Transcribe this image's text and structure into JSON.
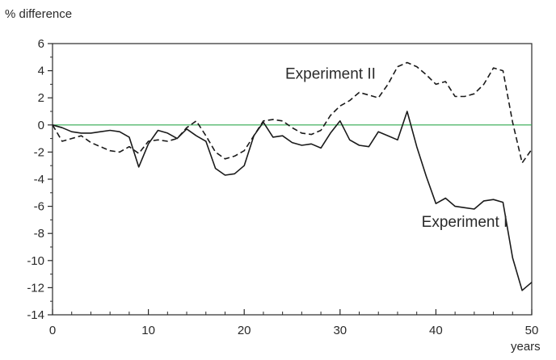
{
  "chart_data": {
    "type": "line",
    "title": "",
    "ylabel": "% difference",
    "xlabel": "years",
    "xlim": [
      0,
      50
    ],
    "ylim": [
      -14,
      6
    ],
    "x_ticks": [
      0,
      10,
      20,
      30,
      40,
      50
    ],
    "y_ticks": [
      6,
      4,
      2,
      0,
      -2,
      -4,
      -6,
      -8,
      -10,
      -12,
      -14
    ],
    "grid": false,
    "zero_line_color": "#2fa84f",
    "line_color": "#1a1a1a",
    "series": [
      {
        "name": "Experiment I",
        "style": "solid",
        "x": [
          0,
          1,
          2,
          3,
          4,
          5,
          6,
          7,
          8,
          9,
          10,
          11,
          12,
          13,
          14,
          15,
          16,
          17,
          18,
          19,
          20,
          21,
          22,
          23,
          24,
          25,
          26,
          27,
          28,
          29,
          30,
          31,
          32,
          33,
          34,
          35,
          36,
          37,
          38,
          39,
          40,
          41,
          42,
          43,
          44,
          45,
          46,
          47,
          48,
          49,
          50
        ],
        "y": [
          0,
          -0.2,
          -0.5,
          -0.6,
          -0.6,
          -0.5,
          -0.4,
          -0.5,
          -0.9,
          -3.1,
          -1.4,
          -0.4,
          -0.6,
          -1.0,
          -0.3,
          -0.8,
          -1.2,
          -3.2,
          -3.7,
          -3.6,
          -3.0,
          -0.8,
          0.2,
          -0.9,
          -0.8,
          -1.3,
          -1.5,
          -1.4,
          -1.7,
          -0.6,
          0.3,
          -1.1,
          -1.5,
          -1.6,
          -0.5,
          -0.8,
          -1.1,
          1.0,
          -1.6,
          -3.8,
          -5.8,
          -5.4,
          -6.0,
          -6.1,
          -6.2,
          -5.6,
          -5.5,
          -5.7,
          -9.8,
          -12.2,
          -11.6
        ]
      },
      {
        "name": "Experiment II",
        "style": "dashed",
        "x": [
          0,
          1,
          2,
          3,
          4,
          5,
          6,
          7,
          8,
          9,
          10,
          11,
          12,
          13,
          14,
          15,
          16,
          17,
          18,
          19,
          20,
          21,
          22,
          23,
          24,
          25,
          26,
          27,
          28,
          29,
          30,
          31,
          32,
          33,
          34,
          35,
          36,
          37,
          38,
          39,
          40,
          41,
          42,
          43,
          44,
          45,
          46,
          47,
          48,
          49,
          50
        ],
        "y": [
          0,
          -1.2,
          -1.0,
          -0.8,
          -1.3,
          -1.6,
          -1.9,
          -2.0,
          -1.6,
          -2.1,
          -1.2,
          -1.1,
          -1.2,
          -1.0,
          -0.2,
          0.3,
          -0.8,
          -2.0,
          -2.5,
          -2.3,
          -1.9,
          -0.8,
          0.3,
          0.4,
          0.3,
          -0.2,
          -0.6,
          -0.7,
          -0.4,
          0.7,
          1.4,
          1.8,
          2.4,
          2.2,
          2.0,
          3.0,
          4.3,
          4.6,
          4.3,
          3.7,
          3.0,
          3.2,
          2.1,
          2.1,
          2.3,
          3.0,
          4.2,
          4.0,
          0.2,
          -2.8,
          -1.8
        ]
      }
    ],
    "annotations": [
      {
        "text": "Experiment II",
        "series": "Experiment II",
        "at_x": 29,
        "at_y": 3.4
      },
      {
        "text": "Experiment I",
        "series": "Experiment I",
        "at_x": 43,
        "at_y": -7.5
      }
    ]
  }
}
